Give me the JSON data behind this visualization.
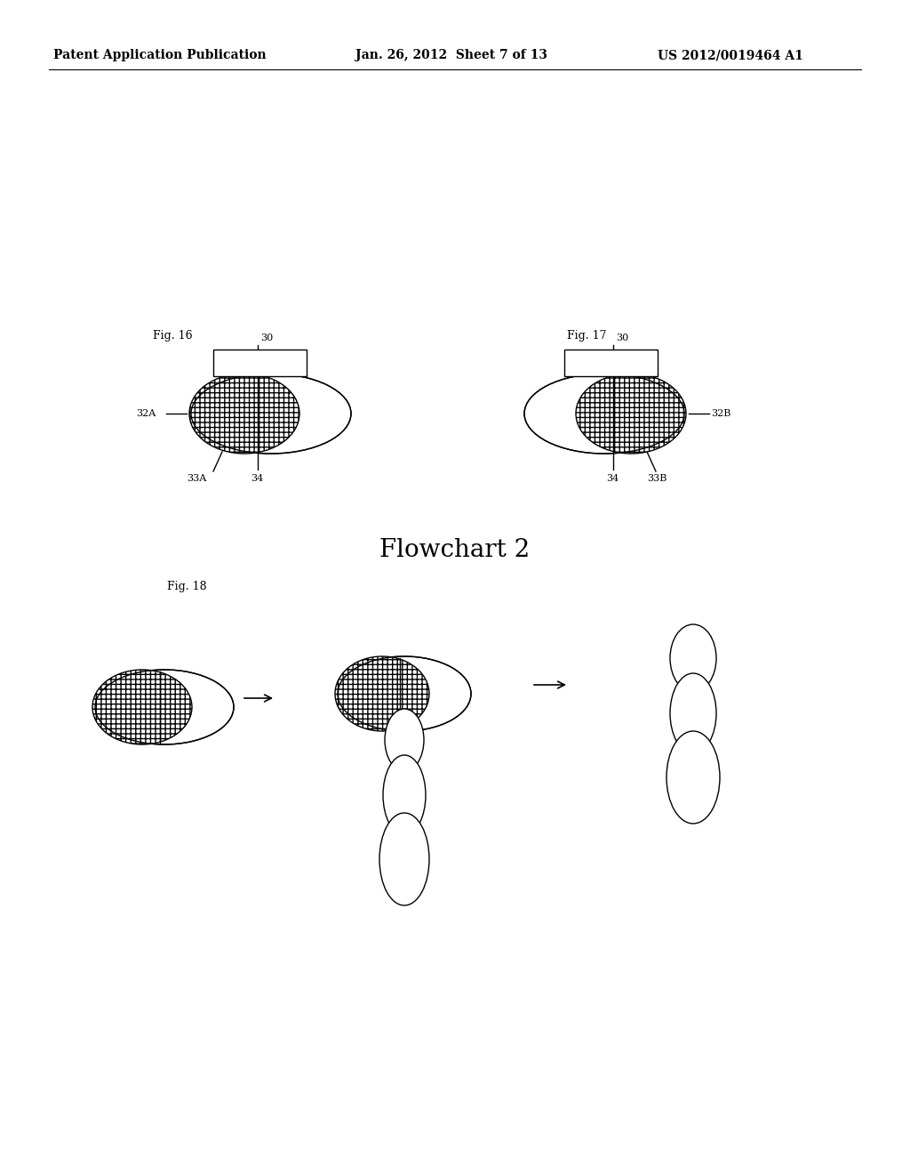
{
  "header_left": "Patent Application Publication",
  "header_mid": "Jan. 26, 2012  Sheet 7 of 13",
  "header_right": "US 2012/0019464 A1",
  "header_fontsize": 10,
  "fig16_label": "Fig. 16",
  "fig17_label": "Fig. 17",
  "fig18_label": "Fig. 18",
  "flowchart_label": "Flowchart 2",
  "bg_color": "#ffffff",
  "line_color": "#000000",
  "hatch_pattern": "+++",
  "label_fontsize": 9,
  "title_fontsize": 20
}
